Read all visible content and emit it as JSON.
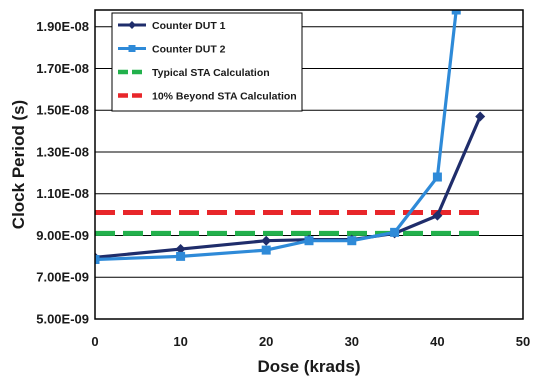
{
  "chart_data": {
    "type": "line",
    "title": "",
    "xlabel": "Dose (krads)",
    "ylabel": "Clock Period (s)",
    "xlim": [
      0,
      50
    ],
    "ylim": [
      5e-09,
      1.98e-08
    ],
    "x_ticks": [
      "0",
      "10",
      "20",
      "30",
      "40",
      "50"
    ],
    "y_ticks": [
      "5.00E-09",
      "7.00E-09",
      "9.00E-09",
      "1.10E-08",
      "1.30E-08",
      "1.50E-08",
      "1.70E-08",
      "1.90E-08"
    ],
    "grid": "horizontal",
    "legend_position": "top-left",
    "series": [
      {
        "name": "Counter DUT 1",
        "color": "#1f2d6b",
        "marker": "diamond",
        "style": "solid",
        "x": [
          0,
          10,
          20,
          25,
          30,
          35,
          40,
          45
        ],
        "y": [
          7.95e-09,
          8.35e-09,
          8.75e-09,
          8.8e-09,
          8.8e-09,
          9.1e-09,
          9.95e-09,
          1.47e-08
        ]
      },
      {
        "name": "Counter DUT 2",
        "color": "#2e8ad8",
        "marker": "square",
        "style": "solid",
        "x": [
          0,
          10,
          20,
          25,
          30,
          35,
          40,
          42.2
        ],
        "y": [
          7.85e-09,
          8e-09,
          8.3e-09,
          8.75e-09,
          8.75e-09,
          9.15e-09,
          1.18e-08,
          1.98e-08
        ]
      },
      {
        "name": "Typical STA Calculation",
        "color": "#22b14c",
        "marker": "none",
        "style": "dashed",
        "x": [
          0,
          45
        ],
        "y": [
          9.1e-09,
          9.1e-09
        ]
      },
      {
        "name": "10% Beyond STA Calculation",
        "color": "#e8262a",
        "marker": "none",
        "style": "dashed",
        "x": [
          0,
          45
        ],
        "y": [
          1.01e-08,
          1.01e-08
        ]
      }
    ]
  }
}
